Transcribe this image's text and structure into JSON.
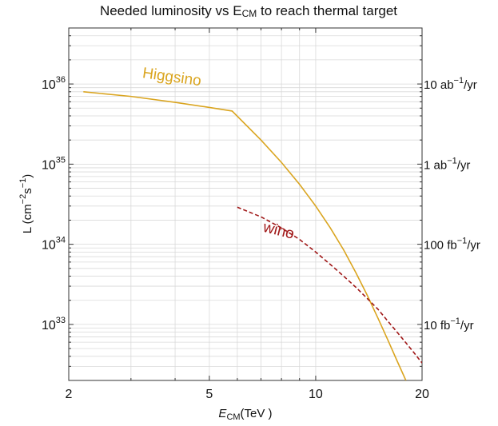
{
  "chart_data": {
    "type": "line",
    "title": "Needed luminosity vs E",
    "title_sub": "CM",
    "title_rest": " to reach thermal target",
    "xlabel_main": "E",
    "xlabel_sub": "CM",
    "xlabel_unit": "(TeV )",
    "ylabel_main": "L (cm",
    "ylabel_exp1": "−2",
    "ylabel_mid": "s",
    "ylabel_exp2": "−1",
    "ylabel_end": ")",
    "x_scale": "log",
    "y_scale": "log",
    "xlim": [
      2,
      20
    ],
    "ylim": [
      2e+32,
      5e+36
    ],
    "x_ticks": [
      {
        "value": 2,
        "label": "2"
      },
      {
        "value": 5,
        "label": "5"
      },
      {
        "value": 10,
        "label": "10"
      },
      {
        "value": 20,
        "label": "20"
      }
    ],
    "y_ticks": [
      {
        "value": 1e+33,
        "base": "10",
        "exp": "33"
      },
      {
        "value": 1e+34,
        "base": "10",
        "exp": "34"
      },
      {
        "value": 1e+35,
        "base": "10",
        "exp": "35"
      },
      {
        "value": 1e+36,
        "base": "10",
        "exp": "36"
      }
    ],
    "right_ticks": [
      {
        "value": 1e+36,
        "pre": "10 ab",
        "exp": "−1",
        "post": "/yr"
      },
      {
        "value": 1e+35,
        "pre": "1 ab",
        "exp": "−1",
        "post": "/yr"
      },
      {
        "value": 1e+34,
        "pre": "100 fb",
        "exp": "−1",
        "post": "/yr"
      },
      {
        "value": 1e+33,
        "pre": "10 fb",
        "exp": "−1",
        "post": "/yr"
      }
    ],
    "grid": true,
    "series": [
      {
        "name": "Higgsino",
        "color": "#daa520",
        "dash": "solid",
        "label_at": [
          3.9,
          1.07e+36
        ],
        "label_rotation": 8,
        "x": [
          2.2,
          3.0,
          4.0,
          5.0,
          5.8,
          7.0,
          8.0,
          9.0,
          10.0,
          11.0,
          12.0,
          13.0,
          14.0,
          15.0,
          16.0,
          17.0,
          18.0
        ],
        "y": [
          8e+35,
          7e+35,
          5.9e+35,
          5.1e+35,
          4.6e+35,
          2e+35,
          1.05e+35,
          5.6e+34,
          3e+34,
          1.6e+34,
          8.5e+33,
          4.4e+33,
          2.3e+33,
          1.2e+33,
          6.4e+32,
          3.5e+32,
          2e+32
        ]
      },
      {
        "name": "wino",
        "color": "#a01818",
        "dash": "dashed",
        "label_at": [
          7.8,
          1.3e+34
        ],
        "label_rotation": 14,
        "x": [
          6.0,
          7.0,
          8.0,
          9.0,
          10.0,
          11.0,
          12.0,
          13.0,
          14.0,
          15.0,
          16.0,
          17.0,
          18.0,
          19.0,
          20.0
        ],
        "y": [
          2.9e+34,
          2.2e+34,
          1.6e+34,
          1.15e+34,
          8e+33,
          5.6e+33,
          4e+33,
          2.9e+33,
          2.1e+33,
          1.55e+33,
          1.1e+33,
          8e+32,
          5.9e+32,
          4.4e+32,
          3.3e+32
        ]
      }
    ]
  }
}
